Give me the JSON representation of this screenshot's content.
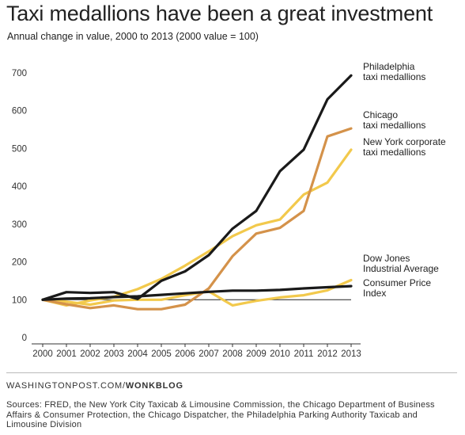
{
  "header": {
    "title": "Taxi medallions have been a great investment",
    "subtitle": "Annual change in value, 2000 to 2013 (2000 value = 100)"
  },
  "footer": {
    "credit_site": "WASHINGTONPOST.COM/",
    "credit_blog": "WONKBLOG",
    "sources": "Sources: FRED, the New York City Taxicab & Limousine Commission, the Chicago Department of Business Affairs & Consumer Protection, the Chicago Dispatcher, the Philadelphia Parking Authority Taxicab and Limousine Division"
  },
  "chart_data": {
    "type": "line",
    "title": "Taxi medallions have been a great investment",
    "subtitle": "Annual change in value, 2000 to 2013 (2000 value = 100)",
    "xlabel": "",
    "ylabel": "",
    "ylim": [
      0,
      700
    ],
    "yticks": [
      0,
      100,
      200,
      300,
      400,
      500,
      600,
      700
    ],
    "grid": false,
    "legend": "direct labels at right end of lines",
    "x": [
      2000,
      2001,
      2002,
      2003,
      2004,
      2005,
      2006,
      2007,
      2008,
      2009,
      2010,
      2011,
      2012,
      2013
    ],
    "series": [
      {
        "name": "Philadelphia taxi medallions",
        "label_lines": [
          "Philadelphia",
          "taxi medallions"
        ],
        "color": "#1a1a1a",
        "values": [
          100,
          120,
          118,
          120,
          102,
          150,
          175,
          218,
          288,
          335,
          440,
          497,
          630,
          693
        ]
      },
      {
        "name": "Chicago taxi medallions",
        "label_lines": [
          "Chicago",
          "taxi medallions"
        ],
        "color": "#d4924a",
        "values": [
          100,
          88,
          78,
          85,
          75,
          75,
          87,
          130,
          215,
          275,
          290,
          335,
          532,
          553
        ]
      },
      {
        "name": "New York corporate taxi medallions",
        "label_lines": [
          "New York corporate",
          "taxi medallions"
        ],
        "color": "#f2c94c",
        "values": [
          100,
          85,
          98,
          108,
          128,
          155,
          190,
          228,
          268,
          297,
          312,
          378,
          410,
          497
        ]
      },
      {
        "name": "Dow Jones Industrial Average",
        "label_lines": [
          "Dow Jones",
          "Industrial Average"
        ],
        "color": "#f2c94c",
        "values": [
          100,
          95,
          87,
          98,
          100,
          100,
          112,
          122,
          85,
          97,
          106,
          112,
          125,
          152
        ]
      },
      {
        "name": "Consumer Price Index",
        "label_lines": [
          "Consumer Price",
          "Index"
        ],
        "color": "#1a1a1a",
        "values": [
          100,
          103,
          104,
          107,
          109,
          113,
          117,
          121,
          124,
          124,
          126,
          130,
          133,
          136
        ]
      }
    ]
  }
}
